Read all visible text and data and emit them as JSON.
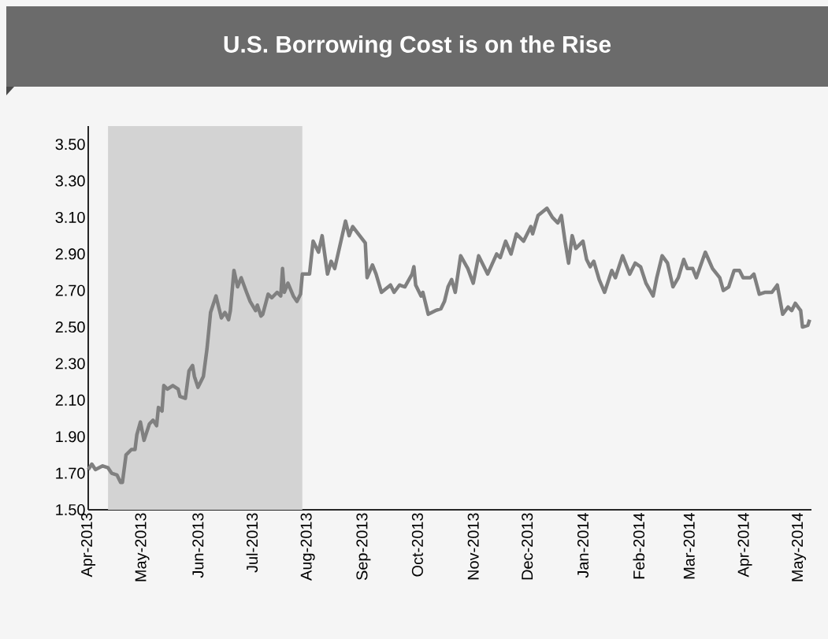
{
  "chart_data": {
    "type": "line",
    "title": "U.S. Borrowing Cost is on the Rise",
    "color": "#808080",
    "x": [
      "2013-04-01",
      "2013-04-03",
      "2013-04-05",
      "2013-04-09",
      "2013-04-12",
      "2013-04-14",
      "2013-04-17",
      "2013-04-19",
      "2013-04-20",
      "2013-04-22",
      "2013-04-25",
      "2013-04-27",
      "2013-04-28",
      "2013-04-30",
      "2013-05-02",
      "2013-05-05",
      "2013-05-07",
      "2013-05-09",
      "2013-05-10",
      "2013-05-12",
      "2013-05-13",
      "2013-05-15",
      "2013-05-18",
      "2013-05-21",
      "2013-05-22",
      "2013-05-25",
      "2013-05-27",
      "2013-05-29",
      "2013-05-30",
      "2013-06-01",
      "2013-06-04",
      "2013-06-06",
      "2013-06-08",
      "2013-06-11",
      "2013-06-14",
      "2013-06-16",
      "2013-06-18",
      "2013-06-19",
      "2013-06-21",
      "2013-06-23",
      "2013-06-25",
      "2013-06-28",
      "2013-06-30",
      "2013-07-03",
      "2013-07-04",
      "2013-07-06",
      "2013-07-07",
      "2013-07-10",
      "2013-07-12",
      "2013-07-15",
      "2013-07-17",
      "2013-07-18",
      "2013-07-19",
      "2013-07-21",
      "2013-07-24",
      "2013-07-26",
      "2013-07-28",
      "2013-07-29",
      "2013-08-02",
      "2013-08-04",
      "2013-08-07",
      "2013-08-09",
      "2013-08-12",
      "2013-08-14",
      "2013-08-16",
      "2013-08-22",
      "2013-08-24",
      "2013-08-26",
      "2013-09-02",
      "2013-09-03",
      "2013-09-06",
      "2013-09-08",
      "2013-09-11",
      "2013-09-16",
      "2013-09-18",
      "2013-09-21",
      "2013-09-24",
      "2013-09-28",
      "2013-09-29",
      "2013-09-30",
      "2013-10-03",
      "2013-10-04",
      "2013-10-07",
      "2013-10-11",
      "2013-10-14",
      "2013-10-16",
      "2013-10-18",
      "2013-10-20",
      "2013-10-22",
      "2013-10-25",
      "2013-10-29",
      "2013-11-01",
      "2013-11-04",
      "2013-11-09",
      "2013-11-14",
      "2013-11-16",
      "2013-11-19",
      "2013-11-22",
      "2013-11-25",
      "2013-11-29",
      "2013-12-03",
      "2013-12-04",
      "2013-12-07",
      "2013-12-12",
      "2013-12-15",
      "2013-12-18",
      "2013-12-20",
      "2013-12-22",
      "2013-12-24",
      "2013-12-26",
      "2013-12-28",
      "2014-01-01",
      "2014-01-03",
      "2014-01-05",
      "2014-01-07",
      "2014-01-10",
      "2014-01-13",
      "2014-01-17",
      "2014-01-19",
      "2014-01-23",
      "2014-01-27",
      "2014-01-30",
      "2014-02-02",
      "2014-02-05",
      "2014-02-09",
      "2014-02-11",
      "2014-02-14",
      "2014-02-17",
      "2014-02-20",
      "2014-02-23",
      "2014-02-26",
      "2014-02-28",
      "2014-03-03",
      "2014-03-05",
      "2014-03-10",
      "2014-03-14",
      "2014-03-18",
      "2014-03-20",
      "2014-03-23",
      "2014-03-26",
      "2014-03-29",
      "2014-03-31",
      "2014-04-04",
      "2014-04-06",
      "2014-04-09",
      "2014-04-12",
      "2014-04-16",
      "2014-04-19",
      "2014-04-22",
      "2014-04-25",
      "2014-04-27",
      "2014-04-29",
      "2014-05-02",
      "2014-05-03",
      "2014-05-06",
      "2014-05-07"
    ],
    "values": [
      1.72,
      1.75,
      1.72,
      1.74,
      1.73,
      1.7,
      1.69,
      1.65,
      1.65,
      1.8,
      1.83,
      1.83,
      1.91,
      1.98,
      1.88,
      1.97,
      1.99,
      1.96,
      2.06,
      2.04,
      2.18,
      2.16,
      2.18,
      2.16,
      2.12,
      2.11,
      2.26,
      2.29,
      2.23,
      2.17,
      2.23,
      2.38,
      2.58,
      2.67,
      2.55,
      2.58,
      2.54,
      2.59,
      2.81,
      2.72,
      2.77,
      2.69,
      2.64,
      2.59,
      2.62,
      2.56,
      2.57,
      2.68,
      2.66,
      2.69,
      2.67,
      2.82,
      2.69,
      2.74,
      2.67,
      2.64,
      2.68,
      2.79,
      2.79,
      2.97,
      2.91,
      3.0,
      2.79,
      2.86,
      2.82,
      3.08,
      3.0,
      3.05,
      2.96,
      2.77,
      2.84,
      2.79,
      2.69,
      2.73,
      2.69,
      2.73,
      2.72,
      2.79,
      2.83,
      2.73,
      2.67,
      2.69,
      2.57,
      2.59,
      2.6,
      2.64,
      2.72,
      2.76,
      2.69,
      2.89,
      2.82,
      2.74,
      2.89,
      2.79,
      2.9,
      2.88,
      2.97,
      2.9,
      3.01,
      2.97,
      3.05,
      3.01,
      3.11,
      3.15,
      3.1,
      3.07,
      3.11,
      2.97,
      2.85,
      3.0,
      2.93,
      2.97,
      2.87,
      2.83,
      2.86,
      2.76,
      2.69,
      2.81,
      2.77,
      2.89,
      2.79,
      2.85,
      2.83,
      2.74,
      2.67,
      2.77,
      2.89,
      2.85,
      2.72,
      2.77,
      2.87,
      2.82,
      2.82,
      2.77,
      2.91,
      2.82,
      2.77,
      2.7,
      2.72,
      2.81,
      2.81,
      2.77,
      2.77,
      2.79,
      2.68,
      2.69,
      2.69,
      2.73,
      2.57,
      2.61,
      2.59,
      2.63,
      2.59,
      2.5,
      2.51,
      2.54
    ],
    "xlim": [
      "2013-04-01",
      "2014-05-08"
    ],
    "xticks": [
      {
        "value": "2013-04",
        "label": "Apr-2013"
      },
      {
        "value": "2013-05",
        "label": "May-2013"
      },
      {
        "value": "2013-06",
        "label": "Jun-2013"
      },
      {
        "value": "2013-07",
        "label": "Jul-2013"
      },
      {
        "value": "2013-08",
        "label": "Aug-2013"
      },
      {
        "value": "2013-09",
        "label": "Sep-2013"
      },
      {
        "value": "2013-10",
        "label": "Oct-2013"
      },
      {
        "value": "2013-11",
        "label": "Nov-2013"
      },
      {
        "value": "2013-12",
        "label": "Dec-2013"
      },
      {
        "value": "2014-01",
        "label": "Jan-2014"
      },
      {
        "value": "2014-02",
        "label": "Feb-2014"
      },
      {
        "value": "2014-03",
        "label": "Mar-2014"
      },
      {
        "value": "2014-04",
        "label": "Apr-2014"
      },
      {
        "value": "2014-05",
        "label": "May-2014"
      }
    ],
    "ylim": [
      1.5,
      3.6
    ],
    "yticks": [
      {
        "value": 1.5,
        "label": "1.50"
      },
      {
        "value": 1.7,
        "label": "1.70"
      },
      {
        "value": 1.9,
        "label": "1.90"
      },
      {
        "value": 2.1,
        "label": "2.10"
      },
      {
        "value": 2.3,
        "label": "2.30"
      },
      {
        "value": 2.5,
        "label": "2.50"
      },
      {
        "value": 2.7,
        "label": "2.70"
      },
      {
        "value": 2.9,
        "label": "2.90"
      },
      {
        "value": 3.1,
        "label": "3.10"
      },
      {
        "value": 3.3,
        "label": "3.30"
      },
      {
        "value": 3.5,
        "label": "3.50"
      }
    ],
    "bands": [
      {
        "axis": "x",
        "from": "2013-04-12",
        "to": "2013-07-29",
        "color": "#d3d3d3"
      }
    ]
  }
}
